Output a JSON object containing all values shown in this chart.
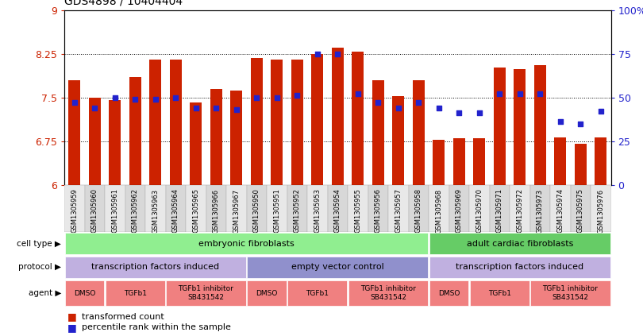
{
  "title": "GDS4898 / 10404404",
  "samples": [
    "GSM1305959",
    "GSM1305960",
    "GSM1305961",
    "GSM1305962",
    "GSM1305963",
    "GSM1305964",
    "GSM1305965",
    "GSM1305966",
    "GSM1305967",
    "GSM1305950",
    "GSM1305951",
    "GSM1305952",
    "GSM1305953",
    "GSM1305954",
    "GSM1305955",
    "GSM1305956",
    "GSM1305957",
    "GSM1305958",
    "GSM1305968",
    "GSM1305969",
    "GSM1305970",
    "GSM1305971",
    "GSM1305972",
    "GSM1305973",
    "GSM1305974",
    "GSM1305975",
    "GSM1305976"
  ],
  "red_values": [
    7.8,
    7.5,
    7.45,
    7.85,
    8.15,
    8.15,
    7.42,
    7.65,
    7.62,
    8.18,
    8.15,
    8.15,
    8.25,
    8.35,
    8.28,
    7.8,
    7.52,
    7.8,
    6.77,
    6.8,
    6.8,
    8.02,
    7.98,
    8.05,
    6.82,
    6.7,
    6.82
  ],
  "blue_values": [
    47,
    44,
    50,
    49,
    49,
    50,
    44,
    44,
    43,
    50,
    50,
    51,
    75,
    75,
    52,
    47,
    44,
    47,
    44,
    41,
    41,
    52,
    52,
    52,
    36,
    35,
    42
  ],
  "ymin": 6.0,
  "ymax": 9.0,
  "yticks_red": [
    6,
    6.75,
    7.5,
    8.25,
    9
  ],
  "yticks_red_labels": [
    "6",
    "6.75",
    "7.5",
    "8.25",
    "9"
  ],
  "yticks_blue": [
    0,
    25,
    50,
    75,
    100
  ],
  "yticks_blue_labels": [
    "0",
    "25",
    "50",
    "75",
    "100%"
  ],
  "cell_type_groups": [
    {
      "label": "embryonic fibroblasts",
      "start": 0,
      "end": 17,
      "color": "#90EE90"
    },
    {
      "label": "adult cardiac fibroblasts",
      "start": 18,
      "end": 26,
      "color": "#66CC66"
    }
  ],
  "protocol_groups": [
    {
      "label": "transcription factors induced",
      "start": 0,
      "end": 8,
      "color": "#C0B0E0"
    },
    {
      "label": "empty vector control",
      "start": 9,
      "end": 17,
      "color": "#8888CC"
    },
    {
      "label": "transcription factors induced",
      "start": 18,
      "end": 26,
      "color": "#C0B0E0"
    }
  ],
  "agent_groups": [
    {
      "label": "DMSO",
      "start": 0,
      "end": 1
    },
    {
      "label": "TGFb1",
      "start": 2,
      "end": 4
    },
    {
      "label": "TGFb1 inhibitor\nSB431542",
      "start": 5,
      "end": 8
    },
    {
      "label": "DMSO",
      "start": 9,
      "end": 10
    },
    {
      "label": "TGFb1",
      "start": 11,
      "end": 13
    },
    {
      "label": "TGFb1 inhibitor\nSB431542",
      "start": 14,
      "end": 17
    },
    {
      "label": "DMSO",
      "start": 18,
      "end": 19
    },
    {
      "label": "TGFb1",
      "start": 20,
      "end": 22
    },
    {
      "label": "TGFb1 inhibitor\nSB431542",
      "start": 23,
      "end": 26
    }
  ],
  "bar_color": "#CC2200",
  "dot_color": "#2222CC",
  "background_color": "#FFFFFF",
  "left_axis_color": "#CC2200",
  "right_axis_color": "#2222CC",
  "agent_color": "#F08080"
}
